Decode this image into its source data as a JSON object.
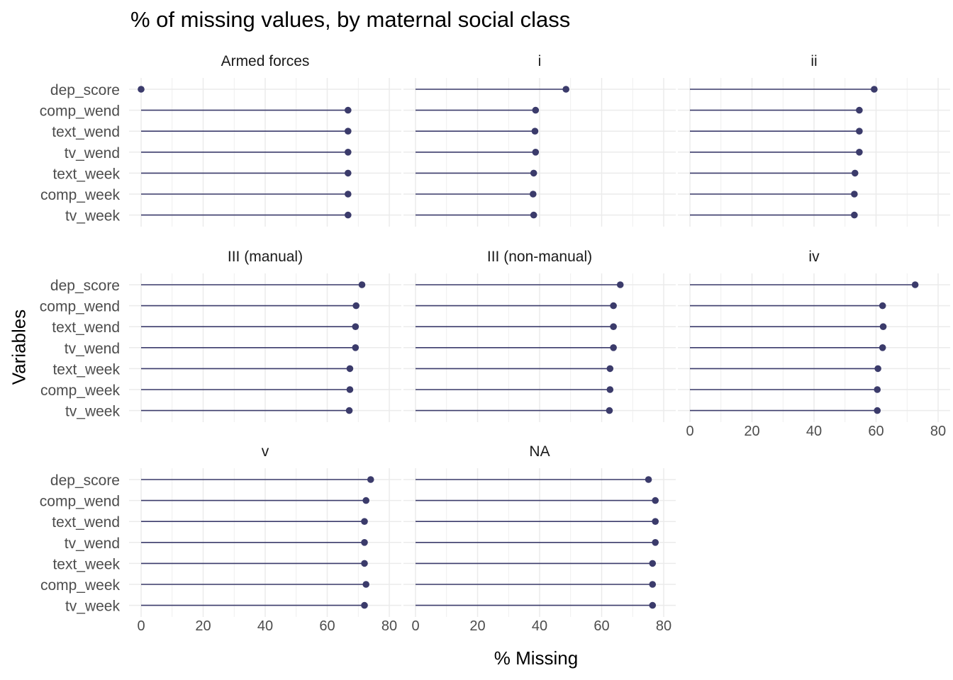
{
  "chart_data": {
    "type": "lollipop",
    "title": "% of missing values, by maternal social class",
    "xlabel": "% Missing",
    "ylabel": "Variables",
    "xlim": [
      0,
      80
    ],
    "x_ticks": [
      0,
      20,
      40,
      60,
      80
    ],
    "grid": true,
    "colors": {
      "line": "#3b3b6b",
      "point": "#3b3b6b",
      "grid": "#ebebeb"
    },
    "variables": [
      "dep_score",
      "comp_wend",
      "text_wend",
      "tv_wend",
      "text_week",
      "comp_week",
      "tv_week"
    ],
    "panels": [
      {
        "name": "Armed forces",
        "values": [
          0,
          66.7,
          66.7,
          66.7,
          66.7,
          66.7,
          66.7
        ]
      },
      {
        "name": "i",
        "values": [
          48.5,
          38.7,
          38.5,
          38.7,
          38.1,
          37.9,
          38.1
        ]
      },
      {
        "name": "ii",
        "values": [
          59.4,
          54.6,
          54.6,
          54.6,
          53.2,
          53.0,
          53.0
        ]
      },
      {
        "name": "III (manual)",
        "values": [
          71.2,
          69.3,
          69.1,
          69.1,
          67.3,
          67.3,
          67.1
        ]
      },
      {
        "name": "III (non-manual)",
        "values": [
          66.0,
          63.8,
          63.8,
          63.8,
          62.7,
          62.7,
          62.5
        ]
      },
      {
        "name": "iv",
        "values": [
          72.6,
          62.1,
          62.3,
          62.1,
          60.6,
          60.4,
          60.4
        ]
      },
      {
        "name": "v",
        "values": [
          74.0,
          72.5,
          72.0,
          72.0,
          72.0,
          72.5,
          72.0
        ]
      },
      {
        "name": "NA",
        "values": [
          75.1,
          77.3,
          77.3,
          77.3,
          76.4,
          76.4,
          76.4
        ]
      }
    ]
  }
}
